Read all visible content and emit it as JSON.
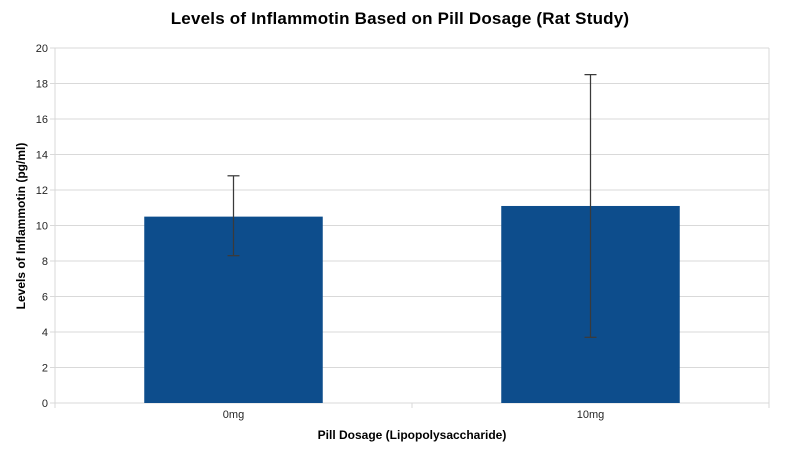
{
  "chart_data": {
    "type": "bar",
    "title": "Levels of Inflammotin Based on Pill Dosage (Rat Study)",
    "xlabel": "Pill Dosage (Lipopolysaccharide)",
    "ylabel": "Levels of Inflammotin (pg/ml)",
    "categories": [
      "0mg",
      "10mg"
    ],
    "values": [
      10.5,
      11.1
    ],
    "error_bars": [
      {
        "low": 8.3,
        "high": 12.8
      },
      {
        "low": 3.7,
        "high": 18.5
      }
    ],
    "ylim": [
      0,
      20
    ],
    "y_tick_step": 2,
    "grid": true,
    "legend": false,
    "colors": {
      "bar": "#0D4D8C",
      "gridline": "#D9D9D9",
      "axis_line": "#D9D9D9",
      "error_bar": "#3A3A3A",
      "tick_label": "#262626",
      "background": "#FFFFFF"
    }
  }
}
